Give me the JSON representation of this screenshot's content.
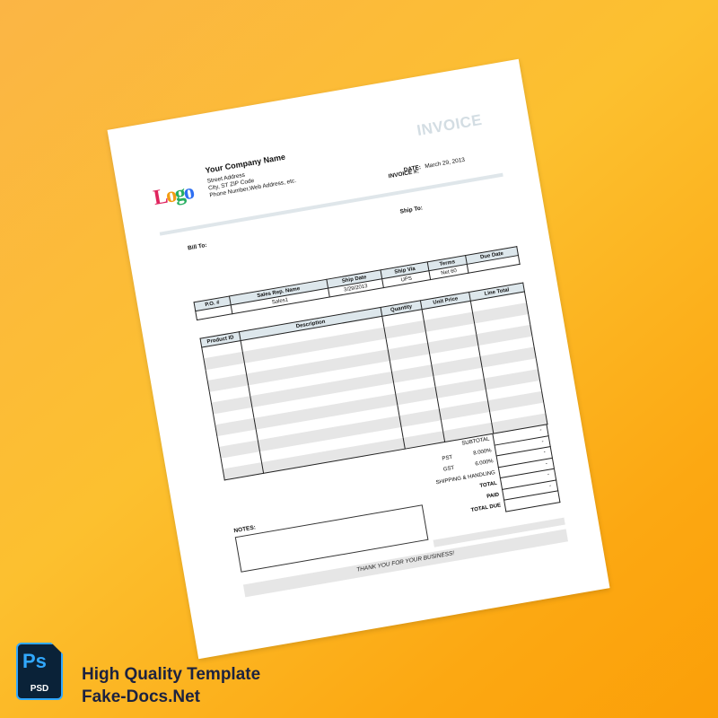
{
  "invoice": {
    "title": "INVOICE",
    "logo_text": "Logo",
    "company_name": "Your Company Name",
    "address_lines": [
      "Street Address",
      "City, ST  ZIP Code",
      "Phone Number,Web Address, etc."
    ],
    "date_label": "DATE:",
    "date_value": "March 29, 2013",
    "invoice_no_label": "INVOICE #:",
    "ship_to_label": "Ship To:",
    "bill_to_label": "Bill To:",
    "order_table": {
      "headers": [
        "P.O. #",
        "Sales Rep. Name",
        "Ship Date",
        "Ship Via",
        "Terms",
        "Due Date"
      ],
      "values": [
        "",
        "Sales1",
        "3/29/2013",
        "UPS",
        "Net 60",
        ""
      ]
    },
    "items_table": {
      "headers": [
        "Product ID",
        "Description",
        "Quantity",
        "Unit Price",
        "Line Total"
      ],
      "row_count": 12
    },
    "totals": [
      {
        "label": "SUBTOTAL",
        "rate": "",
        "value": "-"
      },
      {
        "label": "PST",
        "rate": "8.000%",
        "value": "-"
      },
      {
        "label": "GST",
        "rate": "6.000%",
        "value": "-"
      },
      {
        "label": "SHIPPING & HANDLING",
        "rate": "",
        "value": "-"
      },
      {
        "label": "TOTAL",
        "rate": "",
        "value": "-"
      },
      {
        "label": "PAID",
        "rate": "",
        "value": "-"
      },
      {
        "label": "TOTAL DUE",
        "rate": "",
        "value": ""
      }
    ],
    "notes_label": "NOTES:",
    "thank_you": "THANK YOU FOR YOUR BUSINESS!"
  },
  "branding": {
    "icon": "photoshop-psd-icon",
    "icon_text": "Ps",
    "icon_sub": "PSD",
    "line1": "High Quality Template",
    "line2": "Fake-Docs.Net",
    "text_color": "#1c2240"
  }
}
